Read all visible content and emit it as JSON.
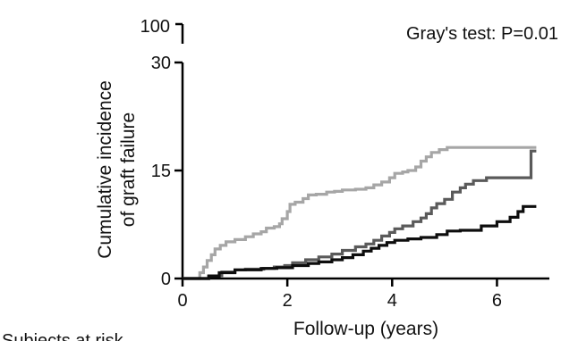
{
  "chart_data": {
    "type": "line",
    "step": true,
    "annotation": "Gray's test: P=0.01",
    "xlabel": "Follow-up (years)",
    "ylabel_lines": [
      "Cumulative incidence",
      "of graft failure"
    ],
    "footer_text": "Subjects at risk",
    "xlim": [
      0,
      7
    ],
    "ylim": [
      0,
      30
    ],
    "broken_axis_upper_tick": "100",
    "x_ticks": [
      0,
      2,
      4,
      6
    ],
    "y_ticks": [
      0,
      15,
      30
    ],
    "grid": false,
    "legend": "none",
    "series": [
      {
        "color": "#a6a6a6",
        "points": [
          [
            0,
            0
          ],
          [
            0.3,
            0
          ],
          [
            0.33,
            0.8
          ],
          [
            0.4,
            1.6
          ],
          [
            0.47,
            2.5
          ],
          [
            0.55,
            3.3
          ],
          [
            0.62,
            4.1
          ],
          [
            0.72,
            4.6
          ],
          [
            0.83,
            5.1
          ],
          [
            1.0,
            5.4
          ],
          [
            1.2,
            5.8
          ],
          [
            1.35,
            6.2
          ],
          [
            1.5,
            6.5
          ],
          [
            1.6,
            7.0
          ],
          [
            1.75,
            7.2
          ],
          [
            1.85,
            7.6
          ],
          [
            1.9,
            8.3
          ],
          [
            2.0,
            9.3
          ],
          [
            2.05,
            10.3
          ],
          [
            2.15,
            10.6
          ],
          [
            2.3,
            11.1
          ],
          [
            2.4,
            11.6
          ],
          [
            2.55,
            11.7
          ],
          [
            2.75,
            12.0
          ],
          [
            2.9,
            12.1
          ],
          [
            3.05,
            12.3
          ],
          [
            3.3,
            12.4
          ],
          [
            3.5,
            12.6
          ],
          [
            3.65,
            13.0
          ],
          [
            3.8,
            13.4
          ],
          [
            3.95,
            14.0
          ],
          [
            4.05,
            14.6
          ],
          [
            4.2,
            14.8
          ],
          [
            4.3,
            15.0
          ],
          [
            4.45,
            15.5
          ],
          [
            4.55,
            16.3
          ],
          [
            4.65,
            16.9
          ],
          [
            4.75,
            17.5
          ],
          [
            4.9,
            17.9
          ],
          [
            5.05,
            18.2
          ],
          [
            6.0,
            18.2
          ],
          [
            6.75,
            18.2
          ]
        ]
      },
      {
        "color": "#5a5a5a",
        "points": [
          [
            0,
            0
          ],
          [
            0.4,
            0
          ],
          [
            0.5,
            0.4
          ],
          [
            0.75,
            0.9
          ],
          [
            1.0,
            1.2
          ],
          [
            1.2,
            1.3
          ],
          [
            1.55,
            1.4
          ],
          [
            1.75,
            1.6
          ],
          [
            1.95,
            1.8
          ],
          [
            2.1,
            2.2
          ],
          [
            2.35,
            2.6
          ],
          [
            2.6,
            3.0
          ],
          [
            2.85,
            3.4
          ],
          [
            3.05,
            3.9
          ],
          [
            3.3,
            4.4
          ],
          [
            3.5,
            4.8
          ],
          [
            3.65,
            5.3
          ],
          [
            3.8,
            5.9
          ],
          [
            3.95,
            6.4
          ],
          [
            4.05,
            6.9
          ],
          [
            4.2,
            7.3
          ],
          [
            4.4,
            7.9
          ],
          [
            4.55,
            8.4
          ],
          [
            4.65,
            9.0
          ],
          [
            4.75,
            9.8
          ],
          [
            4.85,
            10.4
          ],
          [
            5.0,
            11.0
          ],
          [
            5.15,
            12.0
          ],
          [
            5.3,
            12.6
          ],
          [
            5.4,
            13.1
          ],
          [
            5.55,
            13.6
          ],
          [
            5.8,
            14.0
          ],
          [
            6.3,
            14.0
          ],
          [
            6.55,
            14.0
          ],
          [
            6.65,
            17.7
          ],
          [
            6.75,
            17.7
          ]
        ]
      },
      {
        "color": "#0d0d0d",
        "points": [
          [
            0,
            0
          ],
          [
            0.4,
            0
          ],
          [
            0.5,
            0.3
          ],
          [
            0.7,
            0.8
          ],
          [
            1.0,
            1.2
          ],
          [
            1.5,
            1.4
          ],
          [
            1.8,
            1.5
          ],
          [
            2.0,
            1.5
          ],
          [
            2.1,
            1.8
          ],
          [
            2.4,
            2.1
          ],
          [
            2.6,
            2.3
          ],
          [
            2.85,
            2.6
          ],
          [
            3.05,
            2.9
          ],
          [
            3.25,
            3.3
          ],
          [
            3.45,
            3.8
          ],
          [
            3.6,
            4.2
          ],
          [
            3.75,
            4.6
          ],
          [
            3.9,
            5.0
          ],
          [
            4.05,
            5.3
          ],
          [
            4.3,
            5.5
          ],
          [
            4.55,
            5.7
          ],
          [
            4.85,
            6.1
          ],
          [
            5.05,
            6.6
          ],
          [
            5.3,
            6.7
          ],
          [
            5.7,
            7.3
          ],
          [
            6.0,
            7.9
          ],
          [
            6.25,
            8.5
          ],
          [
            6.4,
            9.3
          ],
          [
            6.5,
            10.0
          ],
          [
            6.75,
            10.0
          ]
        ]
      }
    ]
  }
}
